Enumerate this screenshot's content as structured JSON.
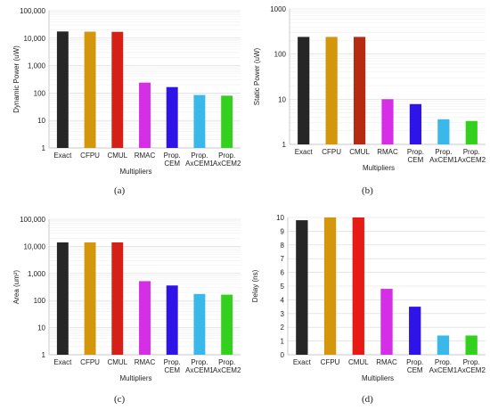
{
  "chart_data": [
    {
      "type": "bar",
      "panel": "(a)",
      "ylabel": "Dynamic Power (uW)",
      "xlabel": "Multipliers",
      "scale": "log",
      "ylim": [
        1,
        100000
      ],
      "ticks": [
        "1",
        "10",
        "100",
        "1,000",
        "10,000",
        "100,000"
      ],
      "categories": [
        [
          "Exact"
        ],
        [
          "CFPU"
        ],
        [
          "CMUL"
        ],
        [
          "RMAC"
        ],
        [
          "Prop.",
          "CEM"
        ],
        [
          "Prop.",
          "AxCEM1"
        ],
        [
          "Prop.",
          "AxCEM2"
        ]
      ],
      "values": [
        17500,
        17200,
        17000,
        240,
        165,
        85,
        80
      ],
      "colors": [
        "#262626",
        "#d4960b",
        "#d42016",
        "#d62ee6",
        "#2e14e8",
        "#3ab8ea",
        "#34d01e"
      ],
      "grid": true
    },
    {
      "type": "bar",
      "panel": "(b)",
      "ylabel": "Static Power (uW)",
      "xlabel": "Multipliers",
      "scale": "log",
      "ylim": [
        1,
        1000
      ],
      "ticks": [
        "1",
        "10",
        "100",
        "1000"
      ],
      "categories": [
        [
          "Exact"
        ],
        [
          "CFPU"
        ],
        [
          "CMUL"
        ],
        [
          "RMAC"
        ],
        [
          "Prop.",
          "CEM"
        ],
        [
          "Prop.",
          "AxCEM1"
        ],
        [
          "Prop.",
          "AxCEM2"
        ]
      ],
      "values": [
        240,
        240,
        240,
        10,
        7.8,
        3.6,
        3.3
      ],
      "colors": [
        "#262626",
        "#d4960b",
        "#b62a12",
        "#d62ee6",
        "#2e14e8",
        "#3ab8ea",
        "#34d01e"
      ],
      "grid": true
    },
    {
      "type": "bar",
      "panel": "(c)",
      "ylabel": "Area (um²)",
      "xlabel": "Multipliers",
      "scale": "log",
      "ylim": [
        1,
        100000
      ],
      "ticks": [
        "1",
        "10",
        "100",
        "1,000",
        "10,000",
        "100,000"
      ],
      "categories": [
        [
          "Exact"
        ],
        [
          "CFPU"
        ],
        [
          "CMUL"
        ],
        [
          "RMAC"
        ],
        [
          "Prop.",
          "CEM"
        ],
        [
          "Prop.",
          "AxCEM1"
        ],
        [
          "Prop.",
          "AxCEM2"
        ]
      ],
      "values": [
        14000,
        14000,
        14000,
        520,
        360,
        175,
        165
      ],
      "colors": [
        "#262626",
        "#d4960b",
        "#d42016",
        "#d62ee6",
        "#2e14e8",
        "#3ab8ea",
        "#34d01e"
      ],
      "grid": true
    },
    {
      "type": "bar",
      "panel": "(d)",
      "ylabel": "Delay (ns)",
      "xlabel": "Multipliers",
      "scale": "linear",
      "ylim": [
        0,
        10
      ],
      "ticks": [
        "0",
        "1",
        "2",
        "3",
        "4",
        "5",
        "6",
        "7",
        "8",
        "9",
        "10"
      ],
      "categories": [
        [
          "Exact"
        ],
        [
          "CFPU"
        ],
        [
          "CMUL"
        ],
        [
          "RMAC"
        ],
        [
          "Prop.",
          "CEM"
        ],
        [
          "Prop.",
          "AxCEM1"
        ],
        [
          "Prop.",
          "AxCEM2"
        ]
      ],
      "values": [
        9.8,
        10,
        10,
        4.8,
        3.5,
        1.4,
        1.4
      ],
      "colors": [
        "#262626",
        "#d4960b",
        "#e81a16",
        "#d62ee6",
        "#2e14e8",
        "#3ab8ea",
        "#34d01e"
      ],
      "grid": true
    }
  ]
}
